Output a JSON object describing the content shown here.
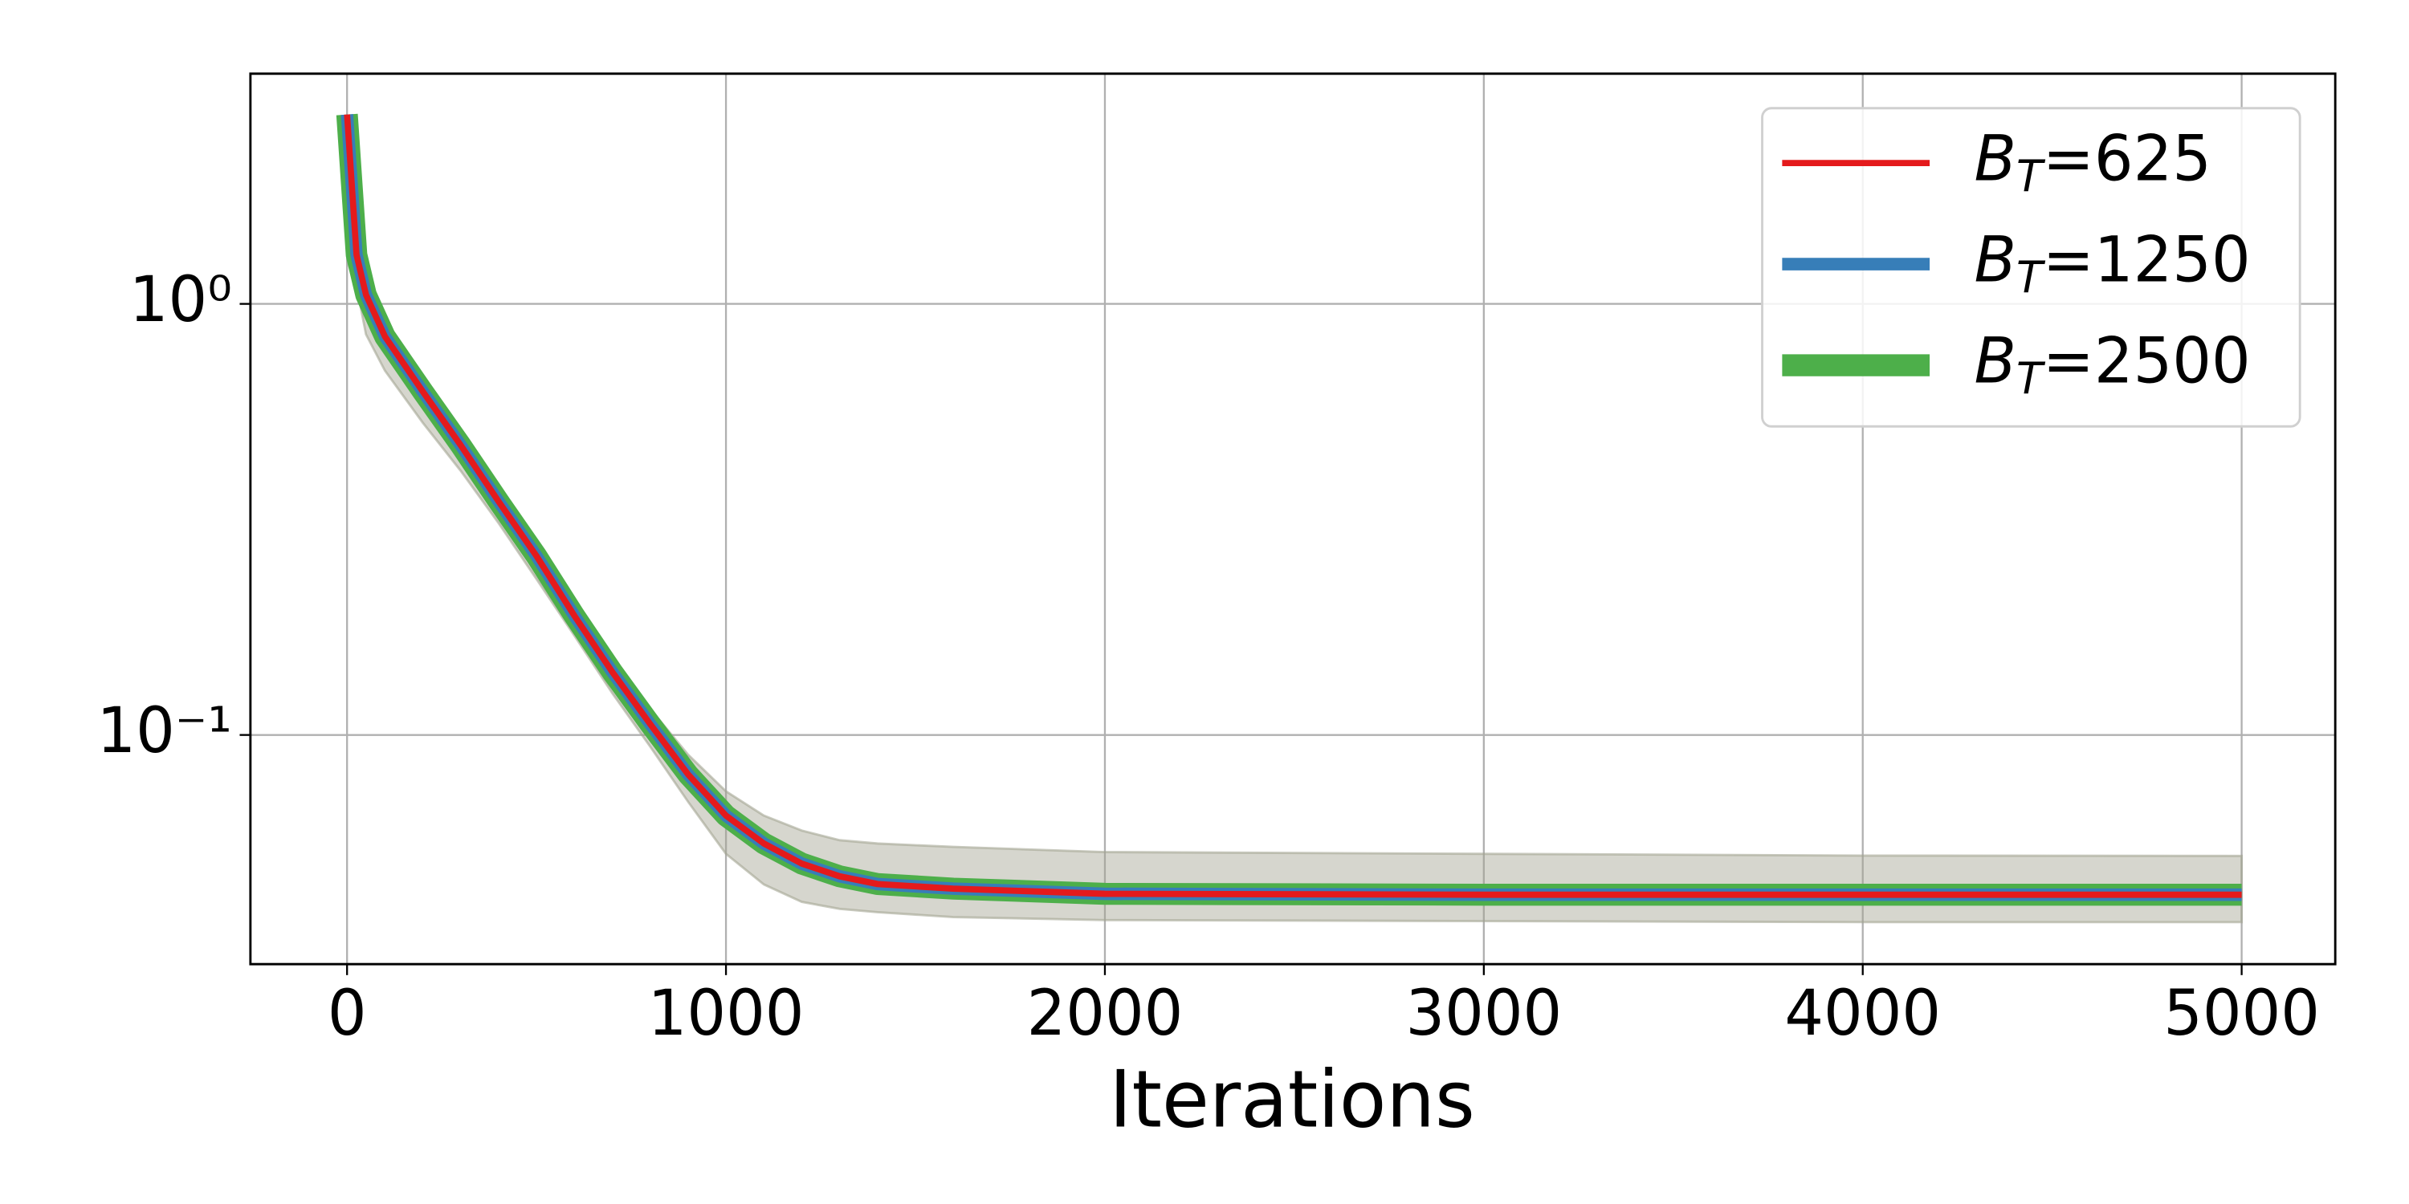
{
  "chart_data": {
    "type": "line",
    "x_label": "Iterations",
    "y_scale": "log",
    "grid": true,
    "legend": "upper right",
    "x": [
      0,
      25,
      50,
      100,
      200,
      300,
      400,
      500,
      600,
      700,
      800,
      900,
      1000,
      1100,
      1200,
      1300,
      1400,
      1600,
      2000,
      3000,
      4000,
      5000
    ],
    "series": [
      {
        "name": "B_T=2500",
        "color": "#4daf4a",
        "width": 14,
        "values": [
          2.75,
          1.3,
          1.05,
          0.84,
          0.626,
          0.47,
          0.348,
          0.26,
          0.189,
          0.14,
          0.106,
          0.081,
          0.065,
          0.056,
          0.0503,
          0.047,
          0.0451,
          0.044,
          0.0428,
          0.0426,
          0.0426,
          0.0426
        ]
      },
      {
        "name": "B_T=1250",
        "color": "#377eb8",
        "width": 8,
        "values": [
          2.75,
          1.3,
          1.05,
          0.84,
          0.626,
          0.47,
          0.348,
          0.26,
          0.189,
          0.14,
          0.106,
          0.081,
          0.065,
          0.056,
          0.0503,
          0.047,
          0.0451,
          0.044,
          0.0428,
          0.0426,
          0.0426,
          0.0426
        ]
      },
      {
        "name": "B_T=625",
        "color": "#e41a1c",
        "width": 4,
        "values": [
          2.75,
          1.3,
          1.05,
          0.84,
          0.626,
          0.47,
          0.348,
          0.26,
          0.189,
          0.14,
          0.106,
          0.081,
          0.065,
          0.056,
          0.0503,
          0.047,
          0.0451,
          0.044,
          0.0428,
          0.0426,
          0.0426,
          0.0426
        ]
      }
    ],
    "band": {
      "color": "#a3a593",
      "lower": [
        2.75,
        1.1,
        0.85,
        0.7,
        0.53,
        0.41,
        0.31,
        0.23,
        0.17,
        0.125,
        0.094,
        0.07,
        0.053,
        0.045,
        0.041,
        0.0395,
        0.0388,
        0.0378,
        0.0372,
        0.037,
        0.0368,
        0.0368
      ],
      "upper": [
        2.75,
        1.4,
        1.15,
        0.92,
        0.68,
        0.51,
        0.375,
        0.28,
        0.205,
        0.152,
        0.115,
        0.09,
        0.074,
        0.065,
        0.06,
        0.057,
        0.056,
        0.055,
        0.0535,
        0.053,
        0.0525,
        0.0524
      ]
    },
    "xlim": [
      -255,
      5247
    ],
    "xticks": [
      0,
      1000,
      2000,
      3000,
      4000,
      5000
    ],
    "ylim": [
      0.0294,
      3.42
    ],
    "yticks": [
      {
        "value": 1,
        "label": "10⁰"
      },
      {
        "value": 0.1,
        "label": "10⁻¹"
      }
    ]
  }
}
